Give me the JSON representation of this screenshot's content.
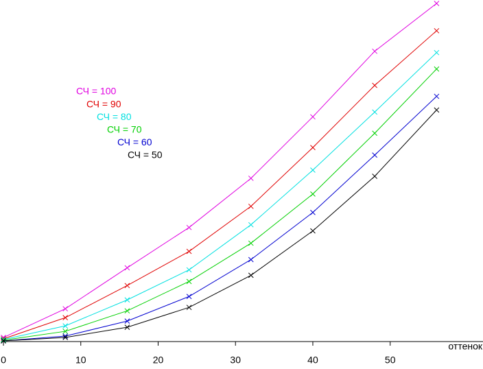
{
  "chart_data": {
    "type": "line",
    "x": [
      0,
      8,
      16,
      24,
      32,
      40,
      48,
      56
    ],
    "xlim": [
      0,
      62
    ],
    "xticks": [
      0,
      10,
      20,
      30,
      40,
      50
    ],
    "ylim": [
      0,
      500
    ],
    "x_label": "оттенок",
    "series": [
      {
        "name": "СЧ = 100",
        "color": "#e000e0",
        "values": [
          6,
          48,
          108,
          167,
          239,
          329,
          425,
          495
        ]
      },
      {
        "name": "СЧ = 90",
        "color": "#e00000",
        "values": [
          4,
          35,
          82,
          132,
          198,
          284,
          375,
          455
        ]
      },
      {
        "name": "СЧ = 80",
        "color": "#00e0e0",
        "values": [
          3,
          23,
          61,
          105,
          171,
          251,
          336,
          423
        ]
      },
      {
        "name": "СЧ = 70",
        "color": "#00d000",
        "values": [
          2,
          15,
          45,
          88,
          144,
          216,
          305,
          399
        ]
      },
      {
        "name": "СЧ = 60",
        "color": "#0000d0",
        "values": [
          1,
          8,
          30,
          66,
          120,
          189,
          273,
          359
        ]
      },
      {
        "name": "СЧ = 50",
        "color": "#000000",
        "values": [
          1,
          6,
          21,
          50,
          97,
          162,
          242,
          339
        ]
      }
    ]
  }
}
